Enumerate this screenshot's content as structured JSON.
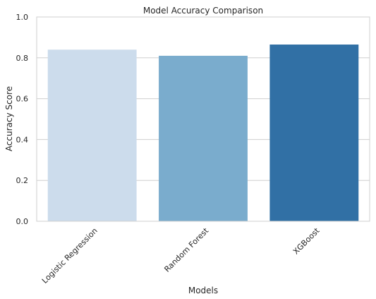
{
  "chart_data": {
    "type": "bar",
    "title": "Model Accuracy Comparison",
    "xlabel": "Models",
    "ylabel": "Accuracy Score",
    "categories": [
      "Logistic Regression",
      "Random Forest",
      "XGBoost"
    ],
    "values": [
      0.84,
      0.81,
      0.865
    ],
    "ylim": [
      0,
      1.0
    ],
    "yticks": [
      "0.0",
      "0.2",
      "0.4",
      "0.6",
      "0.8",
      "1.0"
    ],
    "grid": "horizontal",
    "colors": [
      "#ccdcec",
      "#7aaccd",
      "#3170a5"
    ]
  }
}
